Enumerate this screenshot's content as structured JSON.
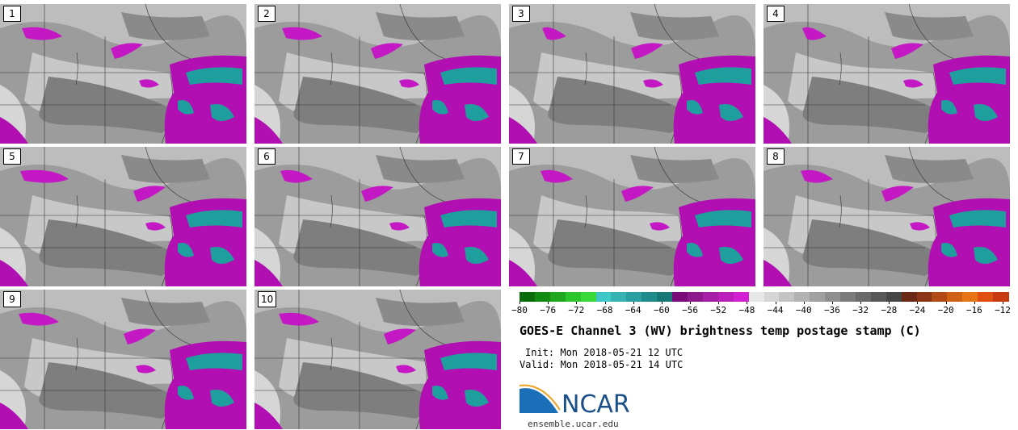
{
  "members": [
    {
      "label": "1"
    },
    {
      "label": "2"
    },
    {
      "label": "3"
    },
    {
      "label": "4"
    },
    {
      "label": "5"
    },
    {
      "label": "6"
    },
    {
      "label": "7"
    },
    {
      "label": "8"
    },
    {
      "label": "9"
    },
    {
      "label": "10"
    }
  ],
  "colorbar": {
    "ticks": [
      "−80",
      "−76",
      "−72",
      "−68",
      "−64",
      "−60",
      "−56",
      "−52",
      "−48",
      "−44",
      "−40",
      "−36",
      "−32",
      "−28",
      "−24",
      "−20",
      "−16",
      "−12"
    ],
    "colors": [
      "#0a6b0a",
      "#138a13",
      "#1fa81f",
      "#2cc62c",
      "#3ad83a",
      "#3fc7c7",
      "#35b3b3",
      "#2a9f9f",
      "#208b8b",
      "#167777",
      "#7a0a7a",
      "#8c1a8c",
      "#a41fa4",
      "#bb1fbb",
      "#d21fd2",
      "#e8e8e8",
      "#d6d6d6",
      "#c4c4c4",
      "#b2b2b2",
      "#a0a0a0",
      "#8e8e8e",
      "#7c7c7c",
      "#6a6a6a",
      "#585858",
      "#464646",
      "#6b2a16",
      "#8a3516",
      "#b24a16",
      "#d06016",
      "#e87418",
      "#e05010",
      "#c83a10"
    ]
  },
  "title": "GOES-E Channel 3 (WV) brightness temp postage stamp (C)",
  "init": "Init: Mon 2018-05-21 12 UTC",
  "valid": "Valid: Mon 2018-05-21 14 UTC",
  "logo": {
    "word": "NCAR",
    "url": "ensemble.ucar.edu"
  }
}
